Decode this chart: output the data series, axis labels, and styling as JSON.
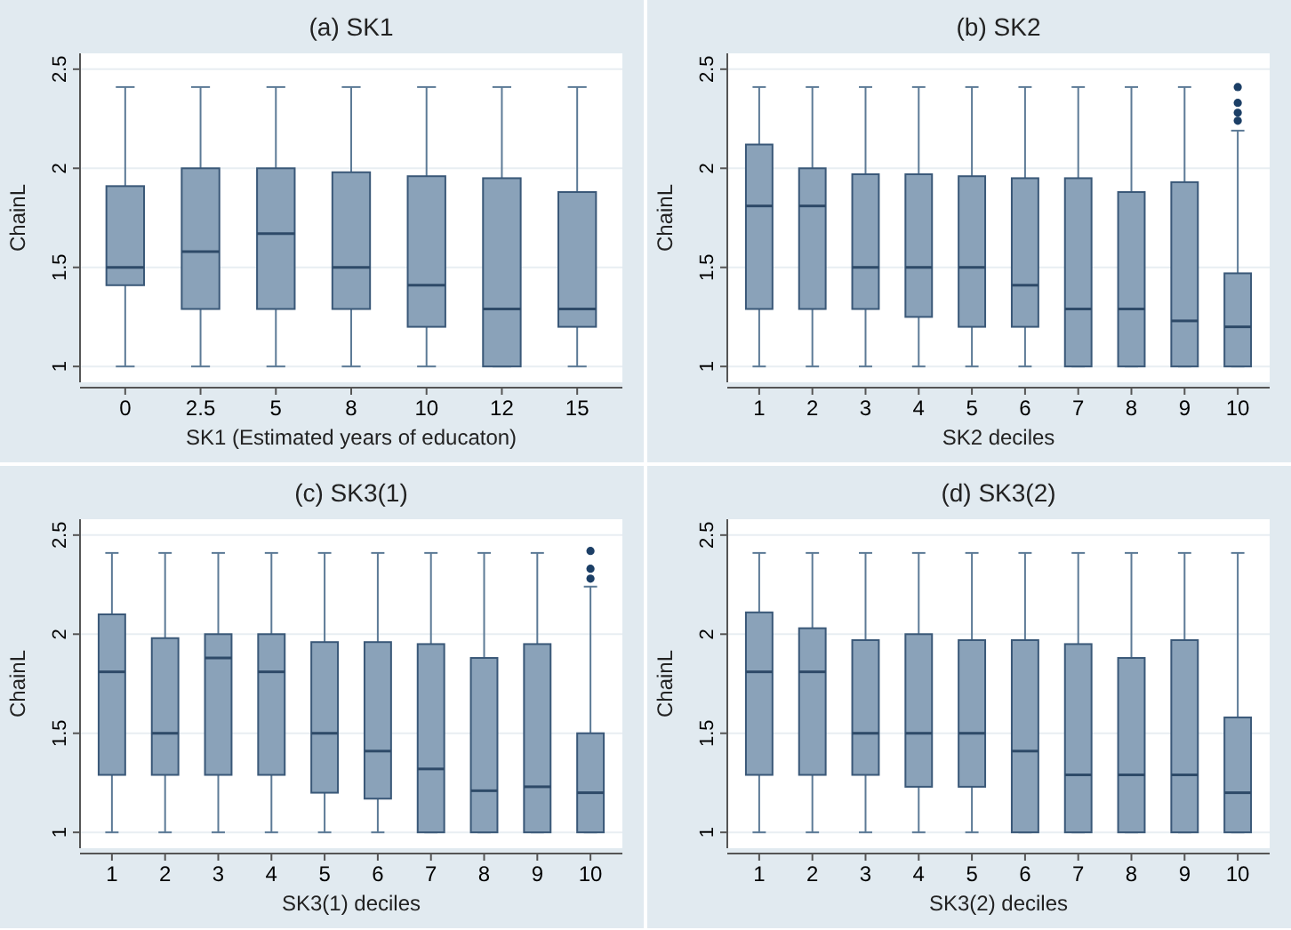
{
  "chart_data": [
    {
      "type": "box",
      "title": "(a) SK1",
      "xlabel": "SK1 (Estimated years of educaton)",
      "ylabel": "ChainL",
      "categories": [
        "0",
        "2.5",
        "5",
        "8",
        "10",
        "12",
        "15"
      ],
      "ylim": [
        0.92,
        2.58
      ],
      "yticks": [
        1,
        1.5,
        2,
        2.5
      ],
      "grid": "y",
      "color": "#8aa2b9",
      "boxes": [
        {
          "low": 1,
          "q1": 1.41,
          "median": 1.5,
          "q3": 1.91,
          "high": 2.41
        },
        {
          "low": 1,
          "q1": 1.29,
          "median": 1.58,
          "q3": 2.0,
          "high": 2.41
        },
        {
          "low": 1,
          "q1": 1.29,
          "median": 1.67,
          "q3": 2.0,
          "high": 2.41
        },
        {
          "low": 1,
          "q1": 1.29,
          "median": 1.5,
          "q3": 1.98,
          "high": 2.41
        },
        {
          "low": 1,
          "q1": 1.2,
          "median": 1.41,
          "q3": 1.96,
          "high": 2.41
        },
        {
          "low": 1,
          "q1": 1.0,
          "median": 1.29,
          "q3": 1.95,
          "high": 2.41
        },
        {
          "low": 1,
          "q1": 1.2,
          "median": 1.29,
          "q3": 1.88,
          "high": 2.41
        }
      ]
    },
    {
      "type": "box",
      "title": "(b) SK2",
      "xlabel": "SK2 deciles",
      "ylabel": "ChainL",
      "categories": [
        "1",
        "2",
        "3",
        "4",
        "5",
        "6",
        "7",
        "8",
        "9",
        "10"
      ],
      "ylim": [
        0.92,
        2.58
      ],
      "yticks": [
        1,
        1.5,
        2,
        2.5
      ],
      "grid": "y",
      "color": "#8aa2b9",
      "boxes": [
        {
          "low": 1,
          "q1": 1.29,
          "median": 1.81,
          "q3": 2.12,
          "high": 2.41
        },
        {
          "low": 1,
          "q1": 1.29,
          "median": 1.81,
          "q3": 2.0,
          "high": 2.41
        },
        {
          "low": 1,
          "q1": 1.29,
          "median": 1.5,
          "q3": 1.97,
          "high": 2.41
        },
        {
          "low": 1,
          "q1": 1.25,
          "median": 1.5,
          "q3": 1.97,
          "high": 2.41
        },
        {
          "low": 1,
          "q1": 1.2,
          "median": 1.5,
          "q3": 1.96,
          "high": 2.41
        },
        {
          "low": 1,
          "q1": 1.2,
          "median": 1.41,
          "q3": 1.95,
          "high": 2.41
        },
        {
          "low": 1,
          "q1": 1.0,
          "median": 1.29,
          "q3": 1.95,
          "high": 2.41
        },
        {
          "low": 1,
          "q1": 1.0,
          "median": 1.29,
          "q3": 1.88,
          "high": 2.41
        },
        {
          "low": 1,
          "q1": 1.0,
          "median": 1.23,
          "q3": 1.93,
          "high": 2.41
        },
        {
          "low": 1,
          "q1": 1.0,
          "median": 1.2,
          "q3": 1.47,
          "high": 2.19,
          "outliers": [
            2.24,
            2.28,
            2.33,
            2.41
          ]
        }
      ]
    },
    {
      "type": "box",
      "title": "(c) SK3(1)",
      "xlabel": "SK3(1) deciles",
      "ylabel": "ChainL",
      "categories": [
        "1",
        "2",
        "3",
        "4",
        "5",
        "6",
        "7",
        "8",
        "9",
        "10"
      ],
      "ylim": [
        0.92,
        2.58
      ],
      "yticks": [
        1,
        1.5,
        2,
        2.5
      ],
      "grid": "y",
      "color": "#8aa2b9",
      "boxes": [
        {
          "low": 1,
          "q1": 1.29,
          "median": 1.81,
          "q3": 2.1,
          "high": 2.41
        },
        {
          "low": 1,
          "q1": 1.29,
          "median": 1.5,
          "q3": 1.98,
          "high": 2.41
        },
        {
          "low": 1,
          "q1": 1.29,
          "median": 1.88,
          "q3": 2.0,
          "high": 2.41
        },
        {
          "low": 1,
          "q1": 1.29,
          "median": 1.81,
          "q3": 2.0,
          "high": 2.41
        },
        {
          "low": 1,
          "q1": 1.2,
          "median": 1.5,
          "q3": 1.96,
          "high": 2.41
        },
        {
          "low": 1,
          "q1": 1.17,
          "median": 1.41,
          "q3": 1.96,
          "high": 2.41
        },
        {
          "low": 1,
          "q1": 1.0,
          "median": 1.32,
          "q3": 1.95,
          "high": 2.41
        },
        {
          "low": 1,
          "q1": 1.0,
          "median": 1.21,
          "q3": 1.88,
          "high": 2.41
        },
        {
          "low": 1,
          "q1": 1.0,
          "median": 1.23,
          "q3": 1.95,
          "high": 2.41
        },
        {
          "low": 1,
          "q1": 1.0,
          "median": 1.2,
          "q3": 1.5,
          "high": 2.24,
          "outliers": [
            2.28,
            2.33,
            2.42
          ]
        }
      ]
    },
    {
      "type": "box",
      "title": "(d) SK3(2)",
      "xlabel": "SK3(2) deciles",
      "ylabel": "ChainL",
      "categories": [
        "1",
        "2",
        "3",
        "4",
        "5",
        "6",
        "7",
        "8",
        "9",
        "10"
      ],
      "ylim": [
        0.92,
        2.58
      ],
      "yticks": [
        1,
        1.5,
        2,
        2.5
      ],
      "grid": "y",
      "color": "#8aa2b9",
      "boxes": [
        {
          "low": 1,
          "q1": 1.29,
          "median": 1.81,
          "q3": 2.11,
          "high": 2.41
        },
        {
          "low": 1,
          "q1": 1.29,
          "median": 1.81,
          "q3": 2.03,
          "high": 2.41
        },
        {
          "low": 1,
          "q1": 1.29,
          "median": 1.5,
          "q3": 1.97,
          "high": 2.41
        },
        {
          "low": 1,
          "q1": 1.23,
          "median": 1.5,
          "q3": 2.0,
          "high": 2.41
        },
        {
          "low": 1,
          "q1": 1.23,
          "median": 1.5,
          "q3": 1.97,
          "high": 2.41
        },
        {
          "low": 1,
          "q1": 1.0,
          "median": 1.41,
          "q3": 1.97,
          "high": 2.41
        },
        {
          "low": 1,
          "q1": 1.0,
          "median": 1.29,
          "q3": 1.95,
          "high": 2.41
        },
        {
          "low": 1,
          "q1": 1.0,
          "median": 1.29,
          "q3": 1.88,
          "high": 2.41
        },
        {
          "low": 1,
          "q1": 1.0,
          "median": 1.29,
          "q3": 1.97,
          "high": 2.41
        },
        {
          "low": 1,
          "q1": 1.0,
          "median": 1.2,
          "q3": 1.58,
          "high": 2.41
        }
      ]
    }
  ]
}
